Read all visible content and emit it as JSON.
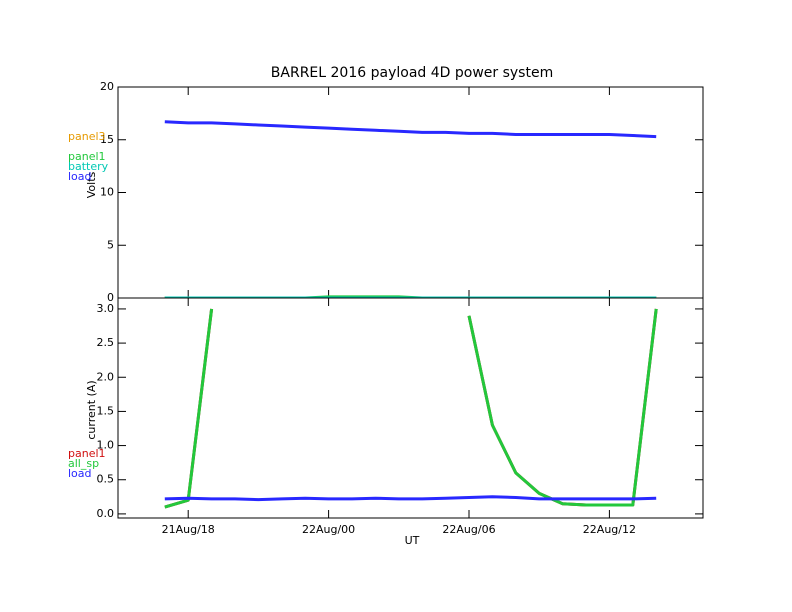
{
  "chart_data": [
    {
      "type": "line",
      "title": "BARREL 2016 payload 4D power system",
      "y_label": "Volts",
      "x": [
        "21Aug/17",
        "21Aug/18",
        "21Aug/19",
        "21Aug/20",
        "21Aug/21",
        "21Aug/22",
        "21Aug/23",
        "22Aug/00",
        "22Aug/01",
        "22Aug/02",
        "22Aug/03",
        "22Aug/04",
        "22Aug/05",
        "22Aug/06",
        "22Aug/07",
        "22Aug/08",
        "22Aug/09",
        "22Aug/10",
        "22Aug/11",
        "22Aug/12",
        "22Aug/13",
        "22Aug/14"
      ],
      "xlim": [
        "21Aug/15",
        "22Aug/16"
      ],
      "ylim": [
        0,
        20
      ],
      "yticks": [
        0,
        5,
        10,
        15,
        20
      ],
      "series": [
        {
          "name": "panel3",
          "color": "#e69a00",
          "values": [
            0,
            0,
            0,
            0,
            0,
            0,
            0,
            0,
            0,
            0,
            0,
            0,
            0,
            0,
            0,
            0,
            0,
            0,
            0,
            0,
            0,
            0
          ]
        },
        {
          "name": "panel1",
          "color": "#22c83c",
          "values": [
            0,
            0,
            0,
            0,
            0,
            0,
            0,
            0.1,
            0.1,
            0.1,
            0.1,
            0,
            0,
            0,
            0,
            0,
            0,
            0,
            0,
            0,
            0,
            0
          ]
        },
        {
          "name": "battery",
          "color": "#00c8b4",
          "values": [
            0,
            0,
            0,
            0,
            0,
            0,
            0,
            0,
            0,
            0,
            0,
            0,
            0,
            0,
            0,
            0,
            0,
            0,
            0,
            0,
            0,
            0
          ]
        },
        {
          "name": "load",
          "color": "#2828ff",
          "values": [
            16.7,
            16.6,
            16.6,
            16.5,
            16.4,
            16.3,
            16.2,
            16.1,
            16.0,
            15.9,
            15.8,
            15.7,
            15.7,
            15.6,
            15.6,
            15.5,
            15.5,
            15.5,
            15.5,
            15.5,
            15.4,
            15.3
          ]
        }
      ]
    },
    {
      "type": "line",
      "x_label": "UT",
      "y_label": "current (A)",
      "x": [
        "21Aug/17",
        "21Aug/18",
        "21Aug/19",
        "21Aug/20",
        "21Aug/21",
        "21Aug/22",
        "21Aug/23",
        "22Aug/00",
        "22Aug/01",
        "22Aug/02",
        "22Aug/03",
        "22Aug/04",
        "22Aug/05",
        "22Aug/06",
        "22Aug/07",
        "22Aug/08",
        "22Aug/09",
        "22Aug/10",
        "22Aug/11",
        "22Aug/12",
        "22Aug/13",
        "22Aug/14"
      ],
      "xlim": [
        "21Aug/15",
        "22Aug/16"
      ],
      "xticks": [
        "21Aug/18",
        "22Aug/00",
        "22Aug/06",
        "22Aug/12"
      ],
      "ylim": [
        -0.06,
        3.16
      ],
      "yticks": [
        {
          "value": 0,
          "label": "0.0"
        },
        0.5,
        {
          "value": 1,
          "label": "1.0"
        },
        1.5,
        {
          "value": 2,
          "label": "2.0"
        },
        2.5,
        {
          "value": 3,
          "label": "3.0"
        }
      ],
      "series": [
        {
          "name": "panel1",
          "color": "#d01010",
          "values": [
            0.1,
            0.2,
            3.0,
            null,
            null,
            null,
            null,
            null,
            null,
            null,
            null,
            null,
            null,
            2.9,
            1.3,
            0.6,
            0.3,
            0.15,
            0.13,
            0.13,
            0.13,
            3.0
          ]
        },
        {
          "name": "all_sp",
          "color": "#22c83c",
          "values": [
            0.1,
            0.2,
            3.0,
            null,
            null,
            null,
            null,
            null,
            null,
            null,
            null,
            null,
            null,
            2.9,
            1.3,
            0.6,
            0.3,
            0.15,
            0.13,
            0.13,
            0.13,
            3.0
          ]
        },
        {
          "name": "load",
          "color": "#2828ff",
          "values": [
            0.22,
            0.23,
            0.22,
            0.22,
            0.21,
            0.22,
            0.23,
            0.22,
            0.22,
            0.23,
            0.22,
            0.22,
            0.23,
            0.24,
            0.25,
            0.24,
            0.22,
            0.22,
            0.22,
            0.22,
            0.22,
            0.23
          ]
        }
      ]
    }
  ]
}
